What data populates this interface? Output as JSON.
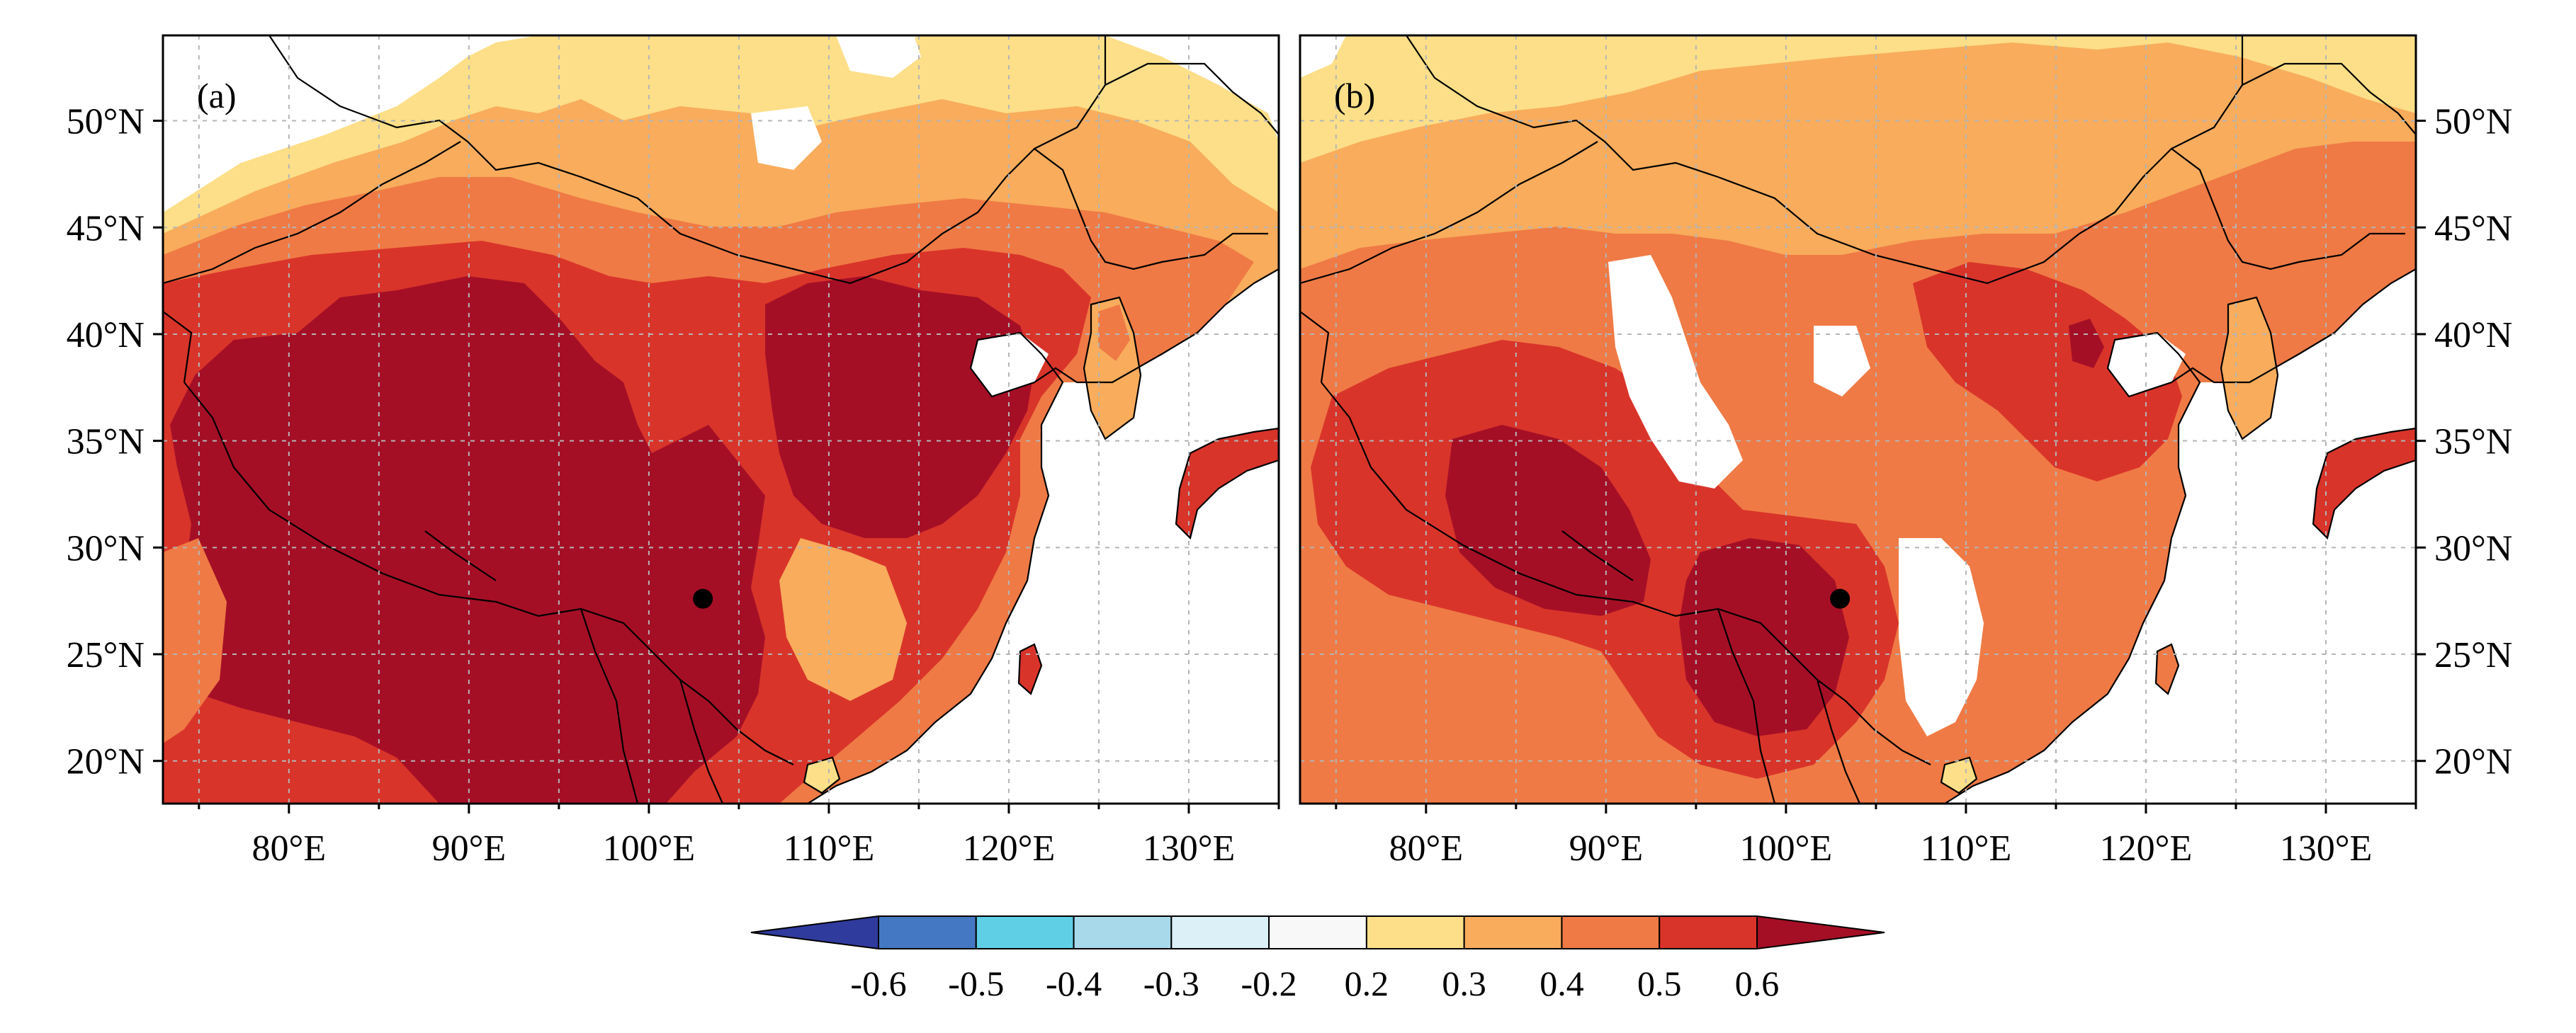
{
  "figure": {
    "panel_a": {
      "label": "(a)",
      "lat_labels": [
        "50°N",
        "45°N",
        "40°N",
        "35°N",
        "30°N",
        "25°N",
        "20°N"
      ],
      "lon_labels": [
        "80°E",
        "90°E",
        "100°E",
        "110°E",
        "120°E",
        "130°E"
      ],
      "marker": {
        "lon": 103,
        "lat": 27.6
      }
    },
    "panel_b": {
      "label": "(b)",
      "lat_labels": [
        "50°N",
        "45°N",
        "40°N",
        "35°N",
        "30°N",
        "25°N",
        "20°N"
      ],
      "lon_labels": [
        "80°E",
        "90°E",
        "100°E",
        "110°E",
        "120°E",
        "130°E"
      ],
      "marker": {
        "lon": 103,
        "lat": 27.6
      }
    },
    "map_extent": {
      "lon": [
        73,
        135
      ],
      "lat": [
        18,
        54
      ]
    },
    "colorbar": {
      "labels": [
        "-0.6",
        "-0.5",
        "-0.4",
        "-0.3",
        "-0.2",
        "0.2",
        "0.3",
        "0.4",
        "0.5",
        "0.6"
      ],
      "colors": [
        "#303b9e",
        "#4578c2",
        "#5fcfe6",
        "#a8d9ea",
        "#dcf1f7",
        "#f8f8f8",
        "#fcdf88",
        "#f8ac5c",
        "#ef7a45",
        "#d9342a",
        "#a50f26"
      ],
      "ocean_color": "#ffffff"
    }
  }
}
